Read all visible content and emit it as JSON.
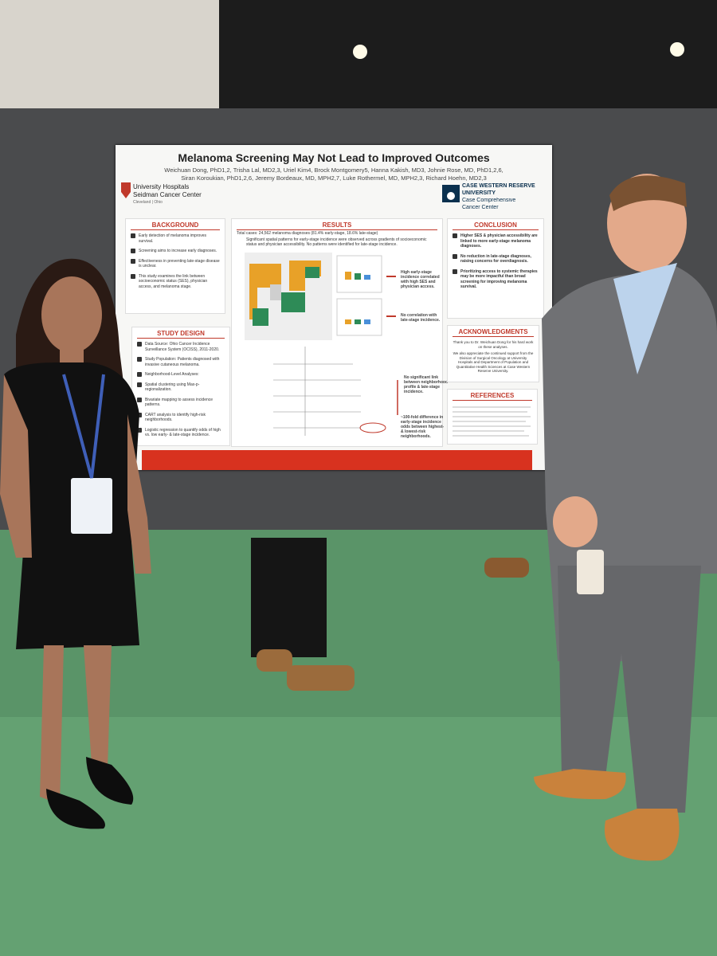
{
  "poster": {
    "title": "Melanoma Screening May Not Lead to Improved Outcomes",
    "authors": "Weichuan Dong, PhD1,2, Trisha Lal, MD2,3, Uriel Kim4, Brock Montgomery5, Hanna Kakish, MD3, Johnie Rose, MD, PhD1,2,6, Siran Koroukian, PhD1,2,6, Jeremy Bordeaux, MD, MPH2,7, Luke Rothermel, MD, MPH2,3, Richard Hoehn, MD2,3",
    "logo_left": [
      "University Hospitals",
      "Seidman Cancer Center",
      "Cleveland | Ohio"
    ],
    "logo_right": [
      "CASE WESTERN RESERVE",
      "UNIVERSITY",
      "Case Comprehensive",
      "Cancer Center"
    ],
    "background": {
      "heading": "BACKGROUND",
      "items": [
        "Early detection of melanoma improves survival.",
        "Screening aims to increase early diagnoses.",
        "Effectiveness in preventing late-stage disease is unclear.",
        "This study examines the link between socioeconomic status (SES), physician access, and melanoma stage."
      ]
    },
    "study_design": {
      "heading": "STUDY DESIGN",
      "items": [
        "Data Source: Ohio Cancer Incidence Surveillance System (OCISS), 2011-2020.",
        "Study Population: Patients diagnosed with invasive cutaneous melanoma.",
        "Neighborhood-Level Analyses:",
        "Spatial clustering using Max-p-regionalization.",
        "Bivariate mapping to assess incidence patterns.",
        "CART analysis to identify high-risk neighborhoods.",
        "Logistic regression to quantify odds of high vs. low early- & late-stage incidence."
      ]
    },
    "results": {
      "heading": "RESULTS",
      "total": "Total cases: 24,562 melanoma diagnoses (81.4% early-stage, 18.6% late-stage)",
      "summary": "Significant spatial patterns for early-stage incidence were observed across gradients of socioeconomic status and physician accessibility. No patterns were identified for late-stage incidence.",
      "callouts": [
        "High early-stage incidence correlated with high SES and physician access.",
        "No correlation with late-stage incidence.",
        "No significant link between neighborhood profile & late-stage incidence.",
        "~100-fold difference in early-stage incidence odds between highest- & lowest-risk neighborhoods."
      ]
    },
    "conclusion": {
      "heading": "CONCLUSION",
      "items": [
        "Higher SES & physician accessibility are linked to more early-stage melanoma diagnoses.",
        "No reduction in late-stage diagnoses, raising concerns for overdiagnosis.",
        "Prioritizing access to systemic therapies may be more impactful than broad screening for improving melanoma survival."
      ]
    },
    "acknowledgments": {
      "heading": "ACKNOWLEDGMENTS",
      "items": [
        "Thank you to Dr. Weichuan Dong for his hard work on these analyses.",
        "We also appreciate the continued support from the Division of Surgical Oncology at University Hospitals and Department of Population and Quantitative Health Sciences at Case Western Reserve University."
      ]
    },
    "references": {
      "heading": "REFERENCES"
    }
  }
}
